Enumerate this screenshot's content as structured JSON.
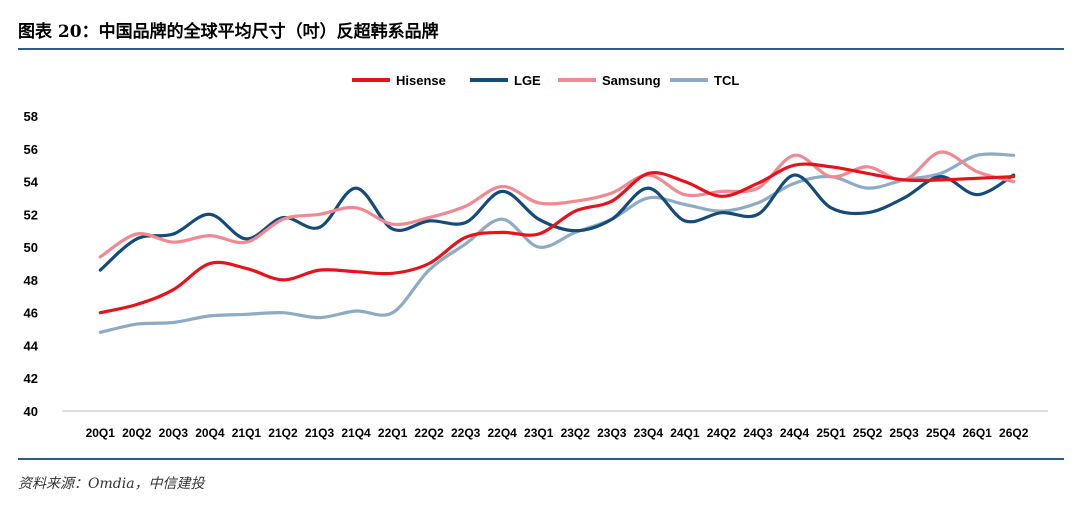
{
  "header": {
    "title": "图表 20：中国品牌的全球平均尺寸（吋）反超韩系品牌"
  },
  "footer": {
    "source": "资料来源：Omdia，中信建投"
  },
  "colors": {
    "rule": "#2b5c8a",
    "axis": "#bfbfbf"
  },
  "chart_data": {
    "type": "line",
    "title": "",
    "xlabel": "",
    "ylabel": "",
    "ylim": [
      40,
      58
    ],
    "yticks": [
      40,
      42,
      44,
      46,
      48,
      50,
      52,
      54,
      56,
      58
    ],
    "grid": false,
    "legend_position": "top-center",
    "categories": [
      "20Q1",
      "20Q2",
      "20Q3",
      "20Q4",
      "21Q1",
      "21Q2",
      "21Q3",
      "21Q4",
      "22Q1",
      "22Q2",
      "22Q3",
      "22Q4",
      "23Q1",
      "23Q2",
      "23Q3",
      "23Q4",
      "24Q1",
      "24Q2",
      "24Q3",
      "24Q4",
      "25Q1",
      "25Q2",
      "25Q3",
      "25Q4",
      "26Q1",
      "26Q2"
    ],
    "series": [
      {
        "name": "Hisense",
        "color": "#e8121c",
        "values": [
          46.0,
          46.5,
          47.4,
          49.0,
          48.7,
          48.0,
          48.6,
          48.5,
          48.4,
          49.0,
          50.6,
          50.9,
          50.8,
          52.2,
          52.8,
          54.5,
          54.0,
          53.1,
          53.9,
          55.0,
          54.9,
          54.5,
          54.1,
          54.1,
          54.2,
          54.3
        ]
      },
      {
        "name": "LGE",
        "color": "#144b78",
        "values": [
          48.6,
          50.5,
          50.8,
          52.0,
          50.5,
          51.8,
          51.2,
          53.6,
          51.1,
          51.6,
          51.5,
          53.4,
          51.7,
          51.0,
          51.7,
          53.6,
          51.6,
          52.1,
          52.0,
          54.4,
          52.4,
          52.1,
          53.0,
          54.3,
          53.2,
          54.4
        ]
      },
      {
        "name": "Samsung",
        "color": "#f08a92",
        "values": [
          49.4,
          50.8,
          50.3,
          50.7,
          50.3,
          51.7,
          52.0,
          52.4,
          51.4,
          51.8,
          52.5,
          53.7,
          52.7,
          52.8,
          53.3,
          54.4,
          53.2,
          53.4,
          53.6,
          55.6,
          54.3,
          54.9,
          54.1,
          55.8,
          54.6,
          54.0
        ]
      },
      {
        "name": "TCL",
        "color": "#8eabc5",
        "values": [
          44.8,
          45.3,
          45.4,
          45.8,
          45.9,
          46.0,
          45.7,
          46.1,
          46.0,
          48.6,
          50.2,
          51.7,
          50.0,
          50.9,
          51.7,
          53.0,
          52.6,
          52.2,
          52.7,
          53.9,
          54.3,
          53.6,
          54.1,
          54.5,
          55.6,
          55.6
        ]
      }
    ]
  }
}
